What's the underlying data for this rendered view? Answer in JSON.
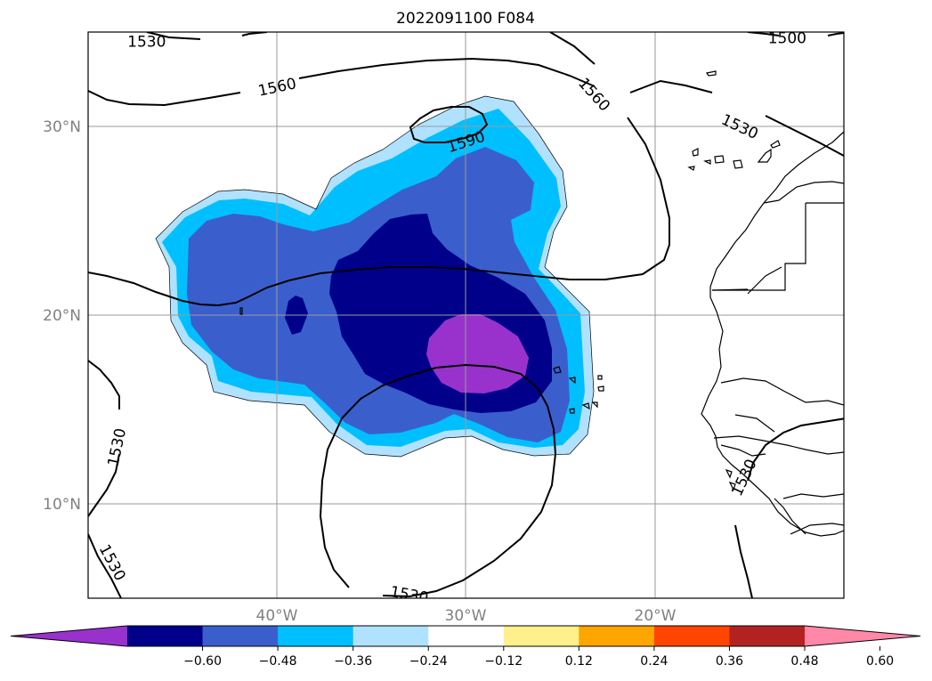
{
  "title": "2022091100 F084",
  "map": {
    "lon_range": [
      -50,
      -10
    ],
    "lat_range": [
      5,
      35
    ],
    "lat_ticks": [
      {
        "value": 30,
        "label": "30°N"
      },
      {
        "value": 20,
        "label": "20°N"
      },
      {
        "value": 10,
        "label": "10°N"
      }
    ],
    "lon_ticks": [
      {
        "value": -40,
        "label": "40°W"
      },
      {
        "value": -30,
        "label": "30°W"
      },
      {
        "value": -20,
        "label": "20°W"
      }
    ]
  },
  "colorbar": {
    "colors": [
      "#9932cc",
      "#00008b",
      "#3a5fcd",
      "#00bfff",
      "#b0e2ff",
      "#ffffff",
      "#fff08c",
      "#ffa500",
      "#ff4500",
      "#b22222",
      "#ff88a8"
    ],
    "ticks": [
      "−0.60",
      "−0.48",
      "−0.36",
      "−0.24",
      "−0.12",
      "0.12",
      "0.24",
      "0.36",
      "0.48",
      "0.60"
    ]
  },
  "contour_labels": [
    {
      "text": "1530",
      "lon": -46.9,
      "lat": 34.5,
      "angle": 0
    },
    {
      "text": "1500",
      "lon": -13.0,
      "lat": 34.7,
      "angle": 0
    },
    {
      "text": "1560",
      "lon": -40.0,
      "lat": 32.1,
      "angle": -12
    },
    {
      "text": "1560",
      "lon": -23.2,
      "lat": 31.7,
      "angle": 48
    },
    {
      "text": "1530",
      "lon": -15.5,
      "lat": 30.0,
      "angle": 25
    },
    {
      "text": "1590",
      "lon": -30.0,
      "lat": 29.2,
      "angle": -18
    },
    {
      "text": "1530",
      "lon": -48.5,
      "lat": 13.0,
      "angle": -78
    },
    {
      "text": "1530",
      "lon": -48.7,
      "lat": 6.9,
      "angle": 62
    },
    {
      "text": "1530",
      "lon": -33.0,
      "lat": 5.2,
      "angle": 10
    },
    {
      "text": "1530",
      "lon": -15.3,
      "lat": 11.4,
      "angle": -65
    }
  ]
}
